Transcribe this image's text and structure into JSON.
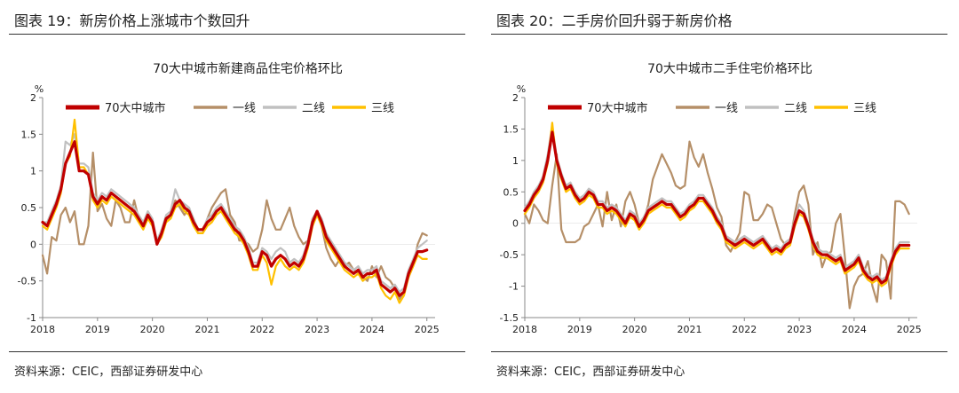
{
  "source_text": "资料来源：CEIC，西部证券研发中心",
  "charts": [
    {
      "figure_title": "图表 19：新房价格上涨城市个数回升",
      "chart_data": {
        "type": "line",
        "title": "70大中城市新建商品住宅价格环比",
        "ylabel": "%",
        "xlabel": "",
        "ylim": [
          -1,
          2
        ],
        "yticks": [
          -1,
          -0.5,
          0,
          0.5,
          1,
          1.5,
          2
        ],
        "xlim": [
          2018,
          2025.15
        ],
        "xticks": [
          2018,
          2019,
          2020,
          2021,
          2022,
          2023,
          2024,
          2025
        ],
        "grid": false,
        "legend_position": "top",
        "x": [
          2018.0,
          2018.083,
          2018.167,
          2018.25,
          2018.333,
          2018.417,
          2018.5,
          2018.583,
          2018.667,
          2018.75,
          2018.833,
          2018.917,
          2019.0,
          2019.083,
          2019.167,
          2019.25,
          2019.333,
          2019.417,
          2019.5,
          2019.583,
          2019.667,
          2019.75,
          2019.833,
          2019.917,
          2020.0,
          2020.083,
          2020.167,
          2020.25,
          2020.333,
          2020.417,
          2020.5,
          2020.583,
          2020.667,
          2020.75,
          2020.833,
          2020.917,
          2021.0,
          2021.083,
          2021.167,
          2021.25,
          2021.333,
          2021.417,
          2021.5,
          2021.583,
          2021.667,
          2021.75,
          2021.833,
          2021.917,
          2022.0,
          2022.083,
          2022.167,
          2022.25,
          2022.333,
          2022.417,
          2022.5,
          2022.583,
          2022.667,
          2022.75,
          2022.833,
          2022.917,
          2023.0,
          2023.083,
          2023.167,
          2023.25,
          2023.333,
          2023.417,
          2023.5,
          2023.583,
          2023.667,
          2023.75,
          2023.833,
          2023.917,
          2024.0,
          2024.083,
          2024.167,
          2024.25,
          2024.333,
          2024.417,
          2024.5,
          2024.583,
          2024.667,
          2024.75,
          2024.833,
          2024.917,
          2025.0
        ],
        "series": [
          {
            "name": "70大中城市",
            "color": "#c00000",
            "values": [
              0.3,
              0.25,
              0.4,
              0.55,
              0.75,
              1.1,
              1.25,
              1.4,
              1.0,
              1.0,
              0.95,
              0.65,
              0.55,
              0.65,
              0.6,
              0.7,
              0.65,
              0.6,
              0.55,
              0.5,
              0.45,
              0.35,
              0.25,
              0.4,
              0.3,
              0.0,
              0.15,
              0.35,
              0.4,
              0.55,
              0.6,
              0.5,
              0.45,
              0.3,
              0.2,
              0.2,
              0.3,
              0.35,
              0.45,
              0.5,
              0.4,
              0.3,
              0.2,
              0.15,
              0.05,
              -0.1,
              -0.3,
              -0.3,
              -0.1,
              -0.15,
              -0.3,
              -0.2,
              -0.15,
              -0.2,
              -0.3,
              -0.25,
              -0.3,
              -0.2,
              0.0,
              0.3,
              0.45,
              0.3,
              0.1,
              0.0,
              -0.1,
              -0.2,
              -0.3,
              -0.35,
              -0.4,
              -0.35,
              -0.45,
              -0.4,
              -0.4,
              -0.35,
              -0.55,
              -0.6,
              -0.65,
              -0.6,
              -0.7,
              -0.65,
              -0.4,
              -0.25,
              -0.1,
              -0.1,
              -0.08
            ]
          },
          {
            "name": "一线",
            "color": "#b58f68",
            "values": [
              -0.15,
              -0.4,
              0.1,
              0.05,
              0.4,
              0.5,
              0.3,
              0.45,
              0.0,
              0.0,
              0.25,
              1.25,
              0.45,
              0.55,
              0.35,
              0.25,
              0.6,
              0.5,
              0.3,
              0.3,
              0.6,
              0.35,
              0.25,
              0.35,
              0.3,
              0.0,
              0.2,
              0.3,
              0.4,
              0.6,
              0.5,
              0.4,
              0.5,
              0.3,
              0.15,
              0.15,
              0.35,
              0.5,
              0.6,
              0.7,
              0.75,
              0.4,
              0.3,
              0.05,
              0.05,
              0.0,
              -0.1,
              -0.05,
              0.2,
              0.6,
              0.35,
              0.2,
              0.2,
              0.35,
              0.5,
              0.25,
              0.1,
              0.0,
              0.05,
              0.35,
              0.45,
              0.25,
              -0.05,
              -0.2,
              -0.3,
              -0.2,
              -0.3,
              -0.25,
              -0.35,
              -0.4,
              -0.45,
              -0.5,
              -0.3,
              -0.45,
              -0.3,
              -0.45,
              -0.5,
              -0.6,
              -0.75,
              -0.65,
              -0.45,
              -0.3,
              0.0,
              0.15,
              0.12
            ]
          },
          {
            "name": "二线",
            "color": "#c0c0c0",
            "values": [
              0.3,
              0.3,
              0.45,
              0.6,
              0.8,
              1.4,
              1.35,
              1.5,
              1.1,
              1.1,
              1.05,
              0.7,
              0.6,
              0.7,
              0.65,
              0.75,
              0.7,
              0.65,
              0.6,
              0.55,
              0.5,
              0.4,
              0.3,
              0.45,
              0.35,
              0.05,
              0.2,
              0.4,
              0.45,
              0.75,
              0.6,
              0.55,
              0.5,
              0.35,
              0.2,
              0.2,
              0.35,
              0.4,
              0.5,
              0.55,
              0.45,
              0.35,
              0.25,
              0.2,
              0.1,
              -0.05,
              -0.25,
              -0.25,
              -0.05,
              -0.1,
              -0.2,
              -0.1,
              -0.05,
              -0.1,
              -0.25,
              -0.2,
              -0.25,
              -0.15,
              0.05,
              0.35,
              0.45,
              0.35,
              0.15,
              0.05,
              -0.05,
              -0.15,
              -0.25,
              -0.3,
              -0.35,
              -0.3,
              -0.4,
              -0.35,
              -0.35,
              -0.3,
              -0.5,
              -0.55,
              -0.6,
              -0.55,
              -0.65,
              -0.6,
              -0.35,
              -0.2,
              -0.05,
              0.0,
              0.05
            ]
          },
          {
            "name": "三线",
            "color": "#ffc000",
            "values": [
              0.25,
              0.2,
              0.35,
              0.5,
              0.7,
              1.1,
              1.2,
              1.7,
              1.05,
              1.05,
              0.95,
              0.6,
              0.5,
              0.6,
              0.55,
              0.65,
              0.6,
              0.55,
              0.5,
              0.45,
              0.4,
              0.3,
              0.2,
              0.35,
              0.25,
              0.0,
              0.1,
              0.3,
              0.35,
              0.5,
              0.55,
              0.45,
              0.4,
              0.25,
              0.15,
              0.15,
              0.25,
              0.3,
              0.4,
              0.45,
              0.35,
              0.25,
              0.15,
              0.1,
              0.0,
              -0.15,
              -0.35,
              -0.35,
              -0.15,
              -0.25,
              -0.55,
              -0.3,
              -0.2,
              -0.3,
              -0.35,
              -0.3,
              -0.35,
              -0.25,
              -0.05,
              0.25,
              0.4,
              0.25,
              0.05,
              -0.05,
              -0.15,
              -0.25,
              -0.35,
              -0.4,
              -0.45,
              -0.4,
              -0.5,
              -0.45,
              -0.45,
              -0.4,
              -0.6,
              -0.7,
              -0.75,
              -0.65,
              -0.8,
              -0.7,
              -0.45,
              -0.3,
              -0.15,
              -0.2,
              -0.2
            ]
          }
        ]
      }
    },
    {
      "figure_title": "图表 20：二手房价回升弱于新房价格",
      "chart_data": {
        "type": "line",
        "title": "70大中城市二手住宅价格环比",
        "ylabel": "%",
        "xlabel": "",
        "ylim": [
          -1.5,
          2
        ],
        "yticks": [
          -1.5,
          -1,
          -0.5,
          0,
          0.5,
          1,
          1.5,
          2
        ],
        "xlim": [
          2018,
          2025.15
        ],
        "xticks": [
          2018,
          2019,
          2020,
          2021,
          2022,
          2023,
          2024,
          2025
        ],
        "grid": false,
        "legend_position": "top",
        "x": [
          2018.0,
          2018.083,
          2018.167,
          2018.25,
          2018.333,
          2018.417,
          2018.5,
          2018.583,
          2018.667,
          2018.75,
          2018.833,
          2018.917,
          2019.0,
          2019.083,
          2019.167,
          2019.25,
          2019.333,
          2019.417,
          2019.5,
          2019.583,
          2019.667,
          2019.75,
          2019.833,
          2019.917,
          2020.0,
          2020.083,
          2020.167,
          2020.25,
          2020.333,
          2020.417,
          2020.5,
          2020.583,
          2020.667,
          2020.75,
          2020.833,
          2020.917,
          2021.0,
          2021.083,
          2021.167,
          2021.25,
          2021.333,
          2021.417,
          2021.5,
          2021.583,
          2021.667,
          2021.75,
          2021.833,
          2021.917,
          2022.0,
          2022.083,
          2022.167,
          2022.25,
          2022.333,
          2022.417,
          2022.5,
          2022.583,
          2022.667,
          2022.75,
          2022.833,
          2022.917,
          2023.0,
          2023.083,
          2023.167,
          2023.25,
          2023.333,
          2023.417,
          2023.5,
          2023.583,
          2023.667,
          2023.75,
          2023.833,
          2023.917,
          2024.0,
          2024.083,
          2024.167,
          2024.25,
          2024.333,
          2024.417,
          2024.5,
          2024.583,
          2024.667,
          2024.75,
          2024.833,
          2024.917,
          2025.0
        ],
        "series": [
          {
            "name": "70大中城市",
            "color": "#c00000",
            "values": [
              0.2,
              0.3,
              0.45,
              0.55,
              0.7,
              1.0,
              1.45,
              1.0,
              0.75,
              0.55,
              0.6,
              0.45,
              0.35,
              0.4,
              0.5,
              0.45,
              0.3,
              0.3,
              0.2,
              0.25,
              0.2,
              0.1,
              0.0,
              0.15,
              0.1,
              -0.05,
              0.05,
              0.2,
              0.25,
              0.3,
              0.35,
              0.3,
              0.3,
              0.2,
              0.1,
              0.15,
              0.25,
              0.3,
              0.4,
              0.4,
              0.3,
              0.2,
              0.05,
              -0.05,
              -0.25,
              -0.3,
              -0.35,
              -0.3,
              -0.25,
              -0.3,
              -0.35,
              -0.3,
              -0.25,
              -0.35,
              -0.45,
              -0.4,
              -0.45,
              -0.35,
              -0.3,
              0.0,
              0.2,
              0.15,
              -0.05,
              -0.3,
              -0.45,
              -0.5,
              -0.5,
              -0.55,
              -0.6,
              -0.55,
              -0.75,
              -0.7,
              -0.65,
              -0.55,
              -0.75,
              -0.85,
              -0.9,
              -0.85,
              -0.95,
              -0.9,
              -0.65,
              -0.45,
              -0.35,
              -0.35,
              -0.35
            ]
          },
          {
            "name": "一线",
            "color": "#b58f68",
            "values": [
              0.15,
              0.0,
              0.3,
              0.2,
              0.05,
              0.0,
              0.6,
              1.1,
              -0.1,
              -0.3,
              -0.3,
              -0.3,
              -0.25,
              -0.05,
              0.0,
              0.15,
              0.3,
              -0.05,
              0.5,
              0.05,
              0.3,
              -0.05,
              0.35,
              0.5,
              0.3,
              0.0,
              0.05,
              0.3,
              0.7,
              0.9,
              1.1,
              0.95,
              0.8,
              0.6,
              0.55,
              0.6,
              1.3,
              1.05,
              0.9,
              1.1,
              0.8,
              0.55,
              0.25,
              0.1,
              -0.35,
              -0.45,
              -0.3,
              -0.15,
              0.5,
              0.45,
              0.05,
              0.05,
              0.15,
              0.3,
              0.25,
              0.0,
              -0.25,
              -0.35,
              -0.3,
              0.15,
              0.5,
              0.6,
              0.3,
              -0.5,
              -0.3,
              -0.7,
              -0.5,
              -0.45,
              0.0,
              0.15,
              -0.55,
              -1.35,
              -1.0,
              -0.85,
              -0.8,
              -0.6,
              -1.0,
              -1.25,
              -0.5,
              -0.6,
              -1.2,
              0.35,
              0.35,
              0.3,
              0.15
            ]
          },
          {
            "name": "二线",
            "color": "#c0c0c0",
            "values": [
              0.25,
              0.35,
              0.5,
              0.6,
              0.75,
              1.1,
              1.55,
              1.05,
              0.8,
              0.6,
              0.65,
              0.5,
              0.4,
              0.45,
              0.55,
              0.5,
              0.35,
              0.35,
              0.25,
              0.3,
              0.25,
              0.15,
              0.05,
              0.2,
              0.15,
              0.0,
              0.1,
              0.25,
              0.3,
              0.35,
              0.4,
              0.35,
              0.35,
              0.25,
              0.15,
              0.2,
              0.3,
              0.35,
              0.45,
              0.45,
              0.35,
              0.25,
              0.1,
              0.0,
              -0.2,
              -0.25,
              -0.3,
              -0.25,
              -0.2,
              -0.25,
              -0.3,
              -0.25,
              -0.2,
              -0.3,
              -0.4,
              -0.35,
              -0.4,
              -0.3,
              -0.25,
              0.05,
              0.3,
              0.2,
              0.0,
              -0.25,
              -0.4,
              -0.45,
              -0.45,
              -0.5,
              -0.55,
              -0.5,
              -0.7,
              -0.65,
              -0.6,
              -0.5,
              -0.7,
              -0.8,
              -0.85,
              -0.8,
              -0.9,
              -0.85,
              -0.6,
              -0.4,
              -0.3,
              -0.3,
              -0.3
            ]
          },
          {
            "name": "三线",
            "color": "#ffc000",
            "values": [
              0.15,
              0.25,
              0.4,
              0.5,
              0.65,
              0.95,
              1.6,
              0.95,
              0.7,
              0.5,
              0.55,
              0.4,
              0.3,
              0.35,
              0.45,
              0.4,
              0.25,
              0.25,
              0.15,
              0.2,
              0.15,
              0.05,
              -0.05,
              0.1,
              0.05,
              -0.1,
              0.0,
              0.15,
              0.2,
              0.25,
              0.3,
              0.25,
              0.25,
              0.15,
              0.05,
              0.1,
              0.2,
              0.25,
              0.35,
              0.35,
              0.25,
              0.15,
              0.0,
              -0.1,
              -0.3,
              -0.35,
              -0.4,
              -0.35,
              -0.3,
              -0.35,
              -0.4,
              -0.35,
              -0.3,
              -0.4,
              -0.5,
              -0.45,
              -0.5,
              -0.4,
              -0.35,
              -0.05,
              0.15,
              0.1,
              -0.1,
              -0.35,
              -0.5,
              -0.55,
              -0.55,
              -0.6,
              -0.65,
              -0.6,
              -0.8,
              -0.75,
              -0.7,
              -0.6,
              -0.8,
              -0.9,
              -0.95,
              -0.9,
              -1.0,
              -0.95,
              -0.7,
              -0.5,
              -0.4,
              -0.4,
              -0.4
            ]
          }
        ]
      }
    }
  ]
}
